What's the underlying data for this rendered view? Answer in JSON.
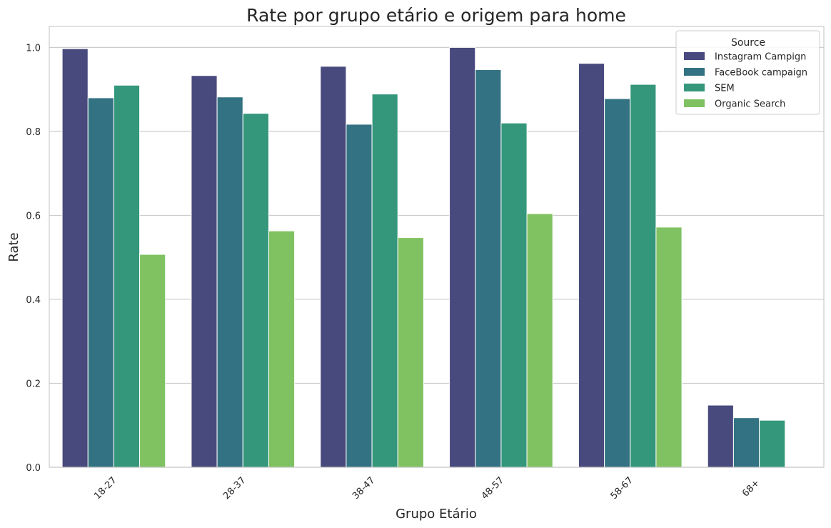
{
  "chart_data": {
    "type": "bar",
    "title": "Rate por grupo etário e origem para home",
    "xlabel": "Grupo Etário",
    "ylabel": "Rate",
    "categories": [
      "18-27",
      "28-37",
      "38-47",
      "48-57",
      "58-67",
      "68+"
    ],
    "ylim": [
      0,
      1.05
    ],
    "yticks": [
      "0.0",
      "0.2",
      "0.4",
      "0.6",
      "0.8",
      "1.0"
    ],
    "grid": "horizontal",
    "legend": {
      "title": "Source",
      "placement": "top-right"
    },
    "series": [
      {
        "name": "Instagram Campign",
        "color": "#48497c",
        "values": [
          0.997,
          0.933,
          0.955,
          1.0,
          0.962,
          0.148
        ]
      },
      {
        "name": "FaceBook campaign",
        "color": "#337283",
        "values": [
          0.88,
          0.882,
          0.817,
          0.947,
          0.878,
          0.118
        ]
      },
      {
        "name": "SEM",
        "color": "#34977b",
        "values": [
          0.91,
          0.843,
          0.889,
          0.82,
          0.912,
          0.112
        ]
      },
      {
        "name": "Organic Search",
        "color": "#80c262",
        "values": [
          0.507,
          0.563,
          0.547,
          0.604,
          0.572,
          null
        ]
      }
    ]
  }
}
